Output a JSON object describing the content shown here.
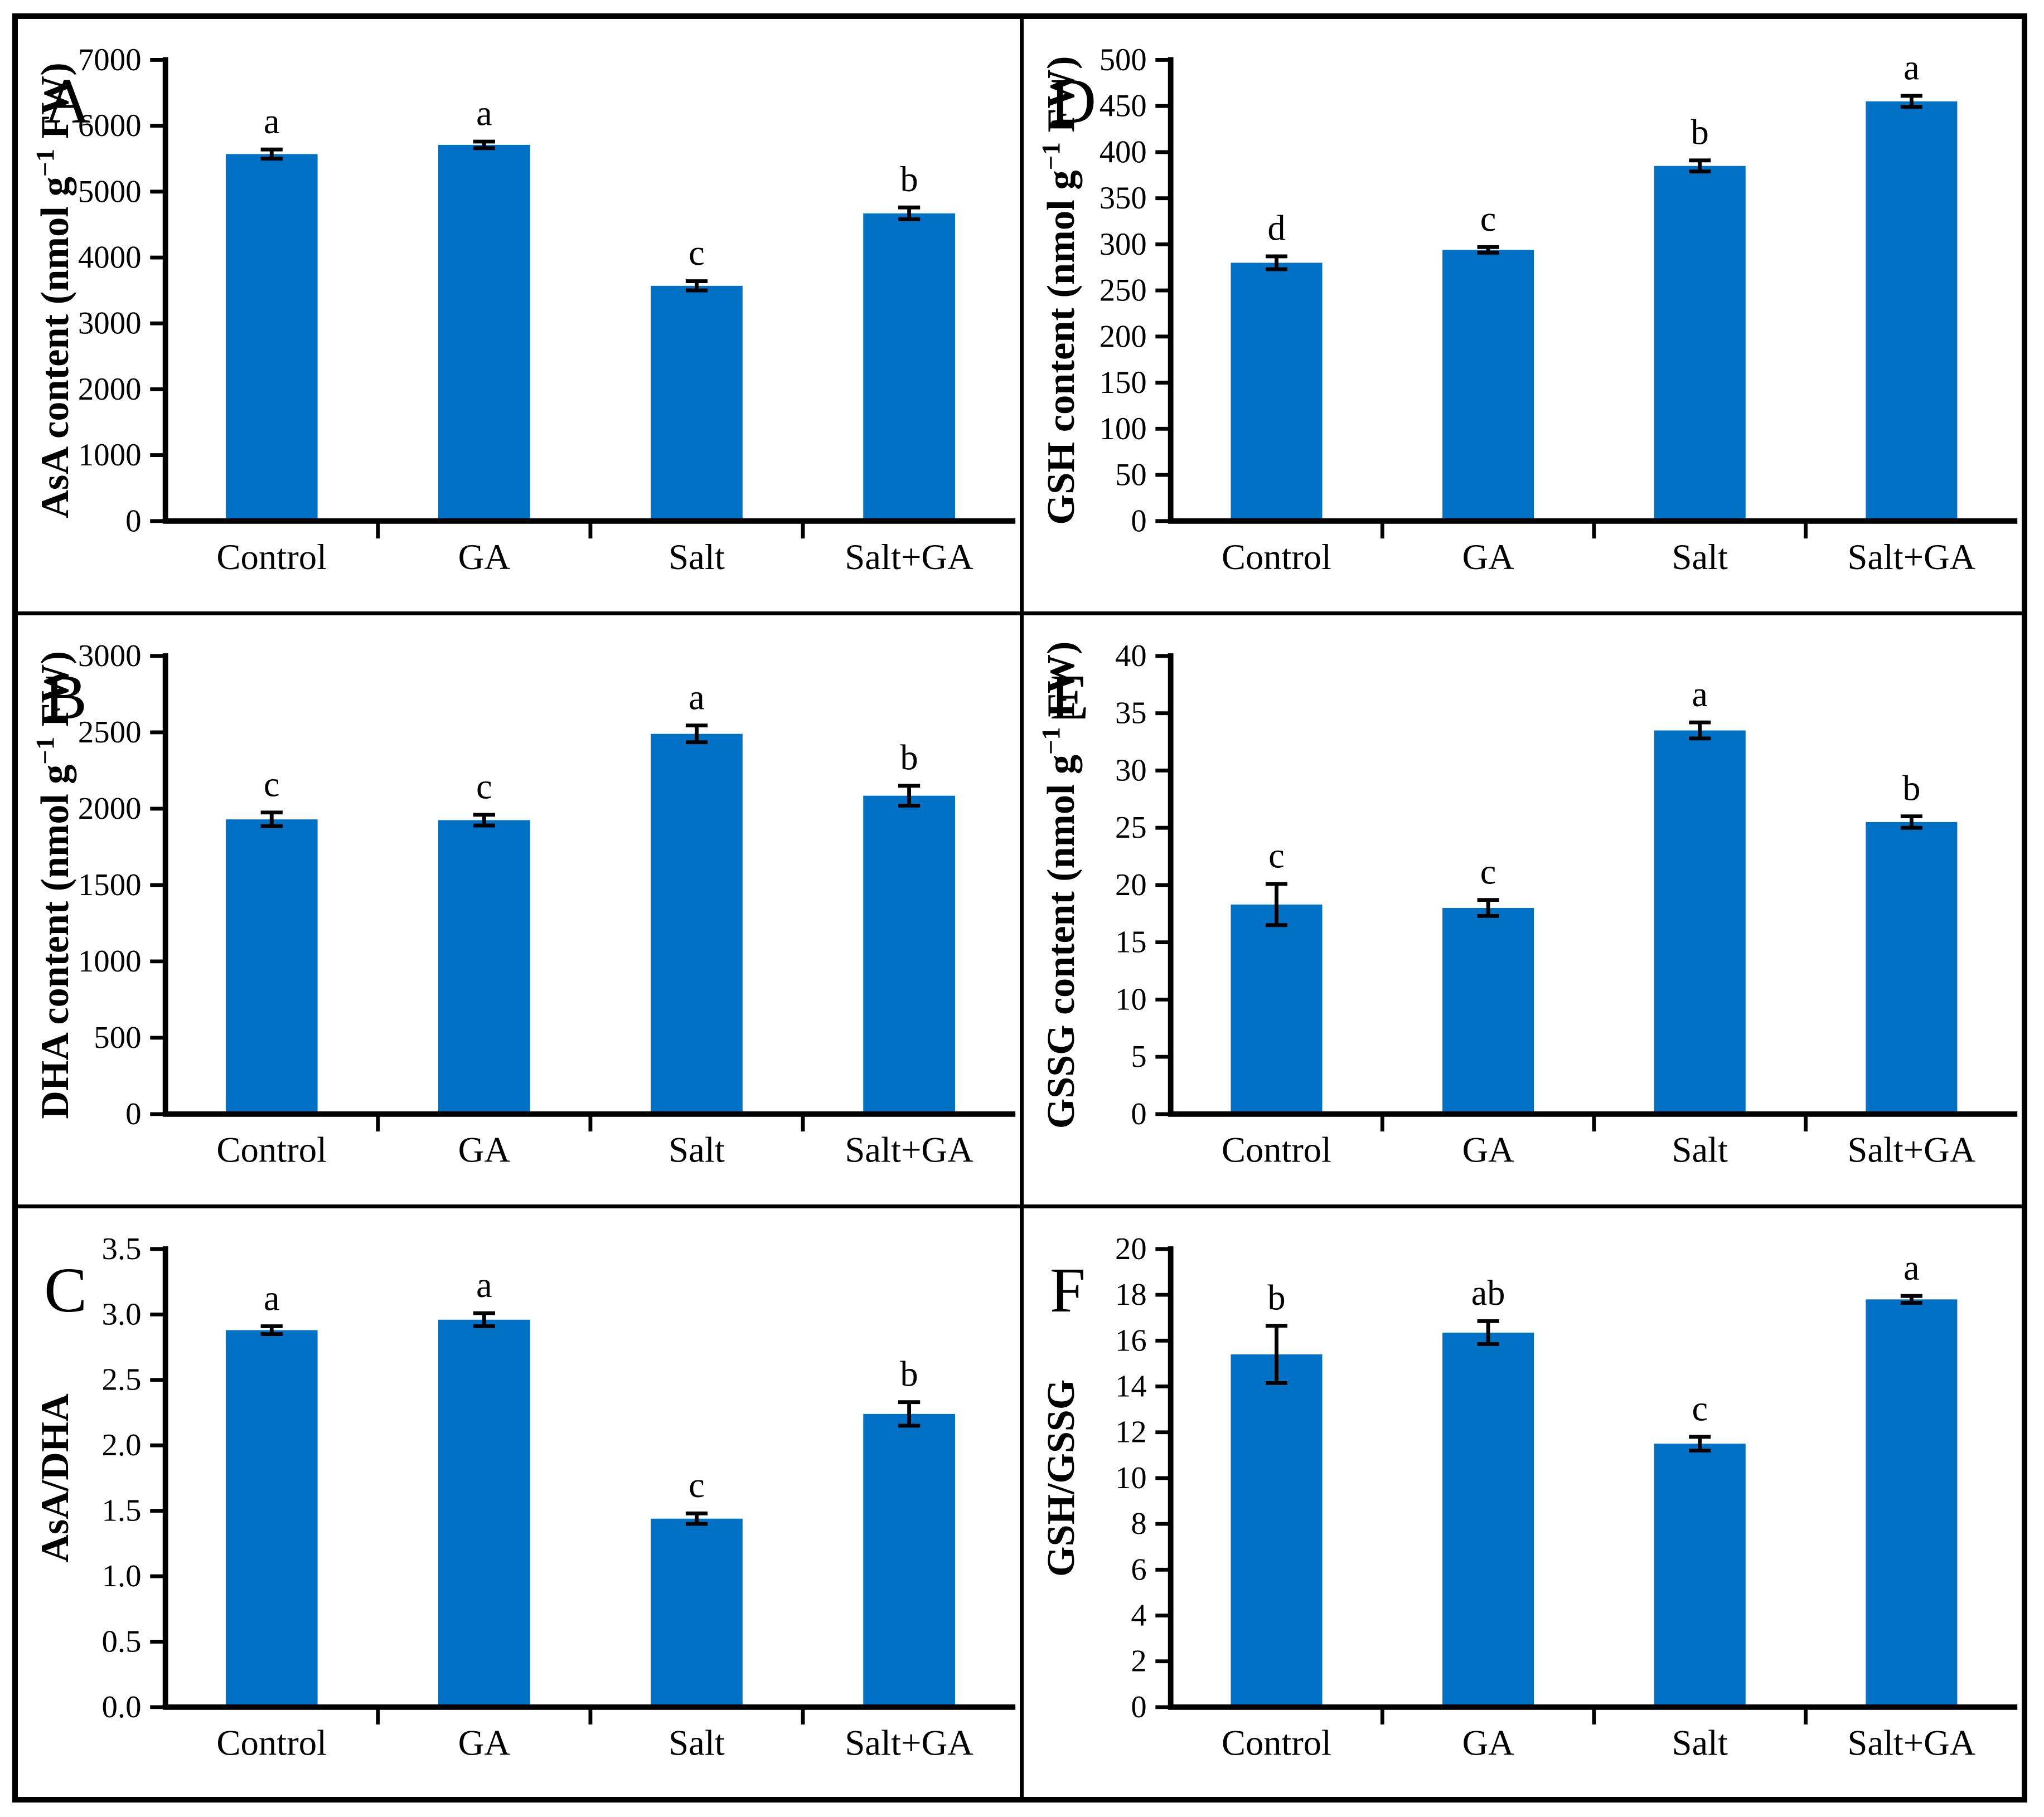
{
  "figure": {
    "background": "#FFFFFF",
    "border_color": "#000000",
    "bar_color": "#0171C6",
    "error_bar_color": "#000000",
    "categories": [
      "Control",
      "GA",
      "Salt",
      "Salt+GA"
    ]
  },
  "chart_data": [
    {
      "type": "bar",
      "panel_label": "A",
      "ylabel": {
        "pre": "AsA content (nmol g",
        "sup": "−1",
        "post": " FW)"
      },
      "ylim": [
        0,
        7000
      ],
      "ystep": 1000,
      "ydecimals": 0,
      "grid": false,
      "legend": "none",
      "categories": [
        "Control",
        "GA",
        "Salt",
        "Salt+GA"
      ],
      "values": [
        5570,
        5710,
        3570,
        4670
      ],
      "errors": [
        70,
        50,
        70,
        90
      ],
      "sig_letters": [
        "a",
        "a",
        "c",
        "b"
      ]
    },
    {
      "type": "bar",
      "panel_label": "B",
      "ylabel": {
        "pre": "DHA content (nmol g",
        "sup": "−1",
        "post": " FW)"
      },
      "ylim": [
        0,
        3000
      ],
      "ystep": 500,
      "ydecimals": 0,
      "grid": false,
      "legend": "none",
      "categories": [
        "Control",
        "GA",
        "Salt",
        "Salt+GA"
      ],
      "values": [
        1930,
        1925,
        2490,
        2085
      ],
      "errors": [
        45,
        35,
        55,
        65
      ],
      "sig_letters": [
        "c",
        "c",
        "a",
        "b"
      ]
    },
    {
      "type": "bar",
      "panel_label": "C",
      "ylabel": {
        "pre": "AsA/DHA",
        "sup": "",
        "post": ""
      },
      "ylim": [
        0,
        3.5
      ],
      "ystep": 0.5,
      "ydecimals": 1,
      "grid": false,
      "legend": "none",
      "categories": [
        "Control",
        "GA",
        "Salt",
        "Salt+GA"
      ],
      "values": [
        2.88,
        2.96,
        1.44,
        2.24
      ],
      "errors": [
        0.03,
        0.05,
        0.04,
        0.09
      ],
      "sig_letters": [
        "a",
        "a",
        "c",
        "b"
      ]
    },
    {
      "type": "bar",
      "panel_label": "D",
      "ylabel": {
        "pre": "GSH content (nmol g",
        "sup": "−1",
        "post": " FW)"
      },
      "ylim": [
        0,
        500
      ],
      "ystep": 50,
      "ydecimals": 0,
      "grid": false,
      "legend": "none",
      "categories": [
        "Control",
        "GA",
        "Salt",
        "Salt+GA"
      ],
      "values": [
        280,
        294,
        385,
        455
      ],
      "errors": [
        7,
        3,
        6,
        6
      ],
      "sig_letters": [
        "d",
        "c",
        "b",
        "a"
      ]
    },
    {
      "type": "bar",
      "panel_label": "E",
      "ylabel": {
        "pre": "GSSG content (nmol g",
        "sup": "−1",
        "post": " FW)"
      },
      "ylim": [
        0,
        40
      ],
      "ystep": 5,
      "ydecimals": 0,
      "grid": false,
      "legend": "none",
      "categories": [
        "Control",
        "GA",
        "Salt",
        "Salt+GA"
      ],
      "values": [
        18.3,
        18.0,
        33.5,
        25.5
      ],
      "errors": [
        1.8,
        0.7,
        0.7,
        0.5
      ],
      "sig_letters": [
        "c",
        "c",
        "a",
        "b"
      ]
    },
    {
      "type": "bar",
      "panel_label": "F",
      "ylabel": {
        "pre": "GSH/GSSG",
        "sup": "",
        "post": ""
      },
      "ylim": [
        0,
        20
      ],
      "ystep": 2,
      "ydecimals": 0,
      "grid": false,
      "legend": "none",
      "categories": [
        "Control",
        "GA",
        "Salt",
        "Salt+GA"
      ],
      "values": [
        15.4,
        16.35,
        11.5,
        17.8
      ],
      "errors": [
        1.25,
        0.5,
        0.3,
        0.15
      ],
      "sig_letters": [
        "b",
        "ab",
        "c",
        "a"
      ]
    }
  ]
}
